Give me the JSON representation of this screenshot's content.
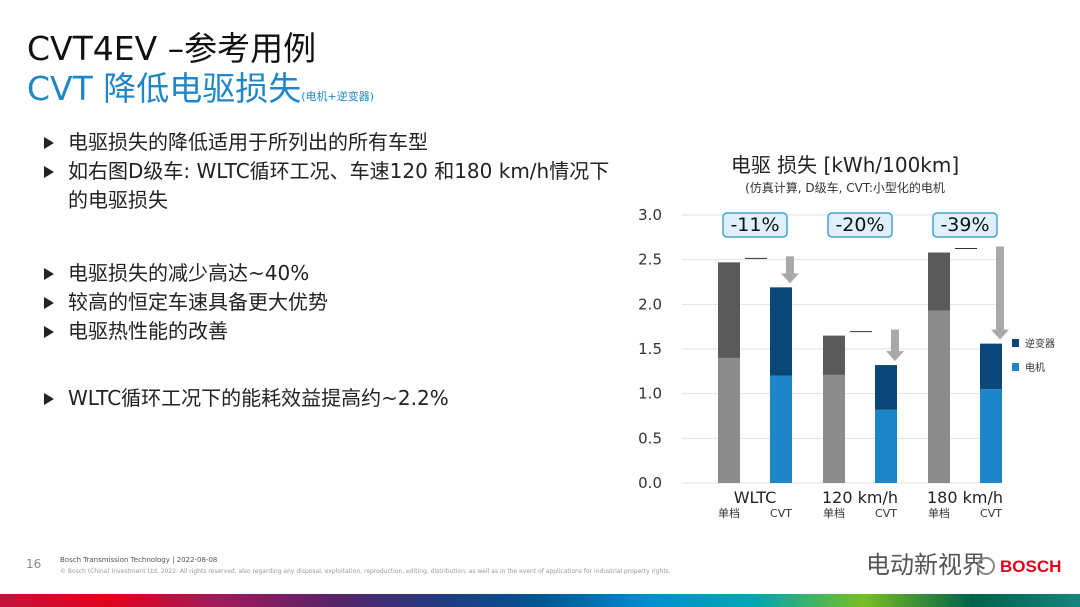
{
  "slide": {
    "title": "CVT4EV –参考用例",
    "subtitle": "CVT 降低电驱损失",
    "subtitle_note": "(电机+逆变器)",
    "page_number": "16",
    "footer_line1": "Bosch Transmission Technology | 2022-08-08",
    "footer_line2": "© Bosch (China) Investment Ltd. 2022. All rights reserved, also regarding any disposal, exploitation, reproduction, editing, distribution, as well as in the event of applications for industrial property rights.",
    "watermark": "电动新视界",
    "brand": "BOSCH"
  },
  "bullets": [
    "电驱损失的降低适用于所列出的所有车型",
    "如右图D级车: WLTC循环工况、车速120 和180 km/h情况下的电驱损失",
    "电驱损失的减少高达~40%",
    "较高的恒定车速具备更大优势",
    "电驱热性能的改善",
    "WLTC循环工况下的能耗效益提高约~2.2%"
  ],
  "chart_data": {
    "type": "bar",
    "stacked": true,
    "title": "电驱 损失 [kWh/100km]",
    "subtitle": "(仿真计算, D级车, CVT:小型化的电机",
    "groups": [
      "WLTC",
      "120 km/h",
      "180 km/h"
    ],
    "bar_labels": [
      "单档",
      "CVT"
    ],
    "ylim": [
      0,
      3.0
    ],
    "yticks": [
      "0.0",
      "0.5",
      "1.0",
      "1.5",
      "2.0",
      "2.5",
      "3.0"
    ],
    "reductions": [
      "-11%",
      "-20%",
      "-39%"
    ],
    "legend_position": "right",
    "series": [
      {
        "name": "电机",
        "colors": {
          "单档": "#8c8c8c",
          "CVT": "#1d86c8"
        },
        "values": [
          1.4,
          1.2,
          1.21,
          0.82,
          1.93,
          1.05
        ]
      },
      {
        "name": "逆变器",
        "colors": {
          "单档": "#5a5a5a",
          "CVT": "#0a4677"
        },
        "values": [
          1.07,
          0.99,
          0.44,
          0.5,
          0.65,
          0.51
        ]
      }
    ],
    "legend_colors": {
      "逆变器": "#0a4677",
      "电机": "#1d86c8"
    }
  }
}
